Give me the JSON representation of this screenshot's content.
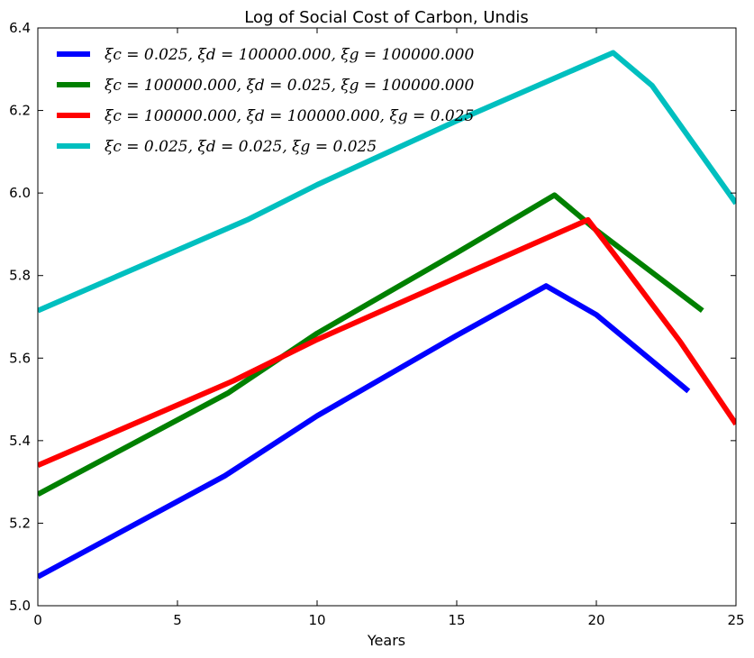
{
  "chart_data": {
    "type": "line",
    "title": "Log of Social Cost of Carbon, Undis",
    "xlabel": "Years",
    "ylabel": "",
    "xlim": [
      0,
      25
    ],
    "ylim": [
      5.0,
      6.4
    ],
    "xticks": [
      "0",
      "5",
      "10",
      "15",
      "20",
      "25"
    ],
    "yticks": [
      "5.0",
      "5.2",
      "5.4",
      "5.6",
      "5.8",
      "6.0",
      "6.2",
      "6.4"
    ],
    "grid": false,
    "legend_position": "upper-left",
    "series": [
      {
        "name": "ξc = 0.025, ξd = 100000.000, ξg = 100000.000",
        "color": "#0000ff",
        "x": [
          0,
          6.7,
          10,
          15,
          18.2,
          20,
          23.3
        ],
        "y": [
          5.07,
          5.315,
          5.46,
          5.655,
          5.775,
          5.705,
          5.52
        ]
      },
      {
        "name": "ξc = 100000.000, ξd = 0.025, ξg = 100000.000",
        "color": "#008000",
        "x": [
          0,
          6.8,
          10,
          15,
          18.5,
          20,
          23.8
        ],
        "y": [
          5.27,
          5.515,
          5.66,
          5.855,
          5.995,
          5.91,
          5.715
        ]
      },
      {
        "name": "ξc = 100000.000, ξd = 100000.000, ξg = 0.025",
        "color": "#ff0000",
        "x": [
          0,
          7,
          10,
          15,
          19.7,
          21,
          23,
          25
        ],
        "y": [
          5.34,
          5.545,
          5.645,
          5.795,
          5.935,
          5.82,
          5.64,
          5.44
        ]
      },
      {
        "name": "ξc = 0.025, ξd = 0.025, ξg = 0.025",
        "color": "#00bfbf",
        "x": [
          0,
          7.5,
          10,
          15,
          20.6,
          22,
          25
        ],
        "y": [
          5.715,
          5.935,
          6.02,
          6.175,
          6.34,
          6.26,
          5.975
        ]
      }
    ]
  }
}
